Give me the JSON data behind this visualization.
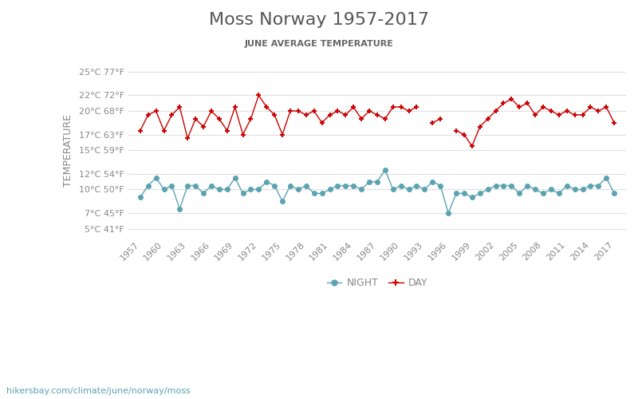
{
  "title": "Moss Norway 1957-2017",
  "subtitle": "JUNE AVERAGE TEMPERATURE",
  "ylabel": "TEMPERATURE",
  "url_text": "hikersbay.com/climate/june/norway/moss",
  "years": [
    1957,
    1958,
    1959,
    1960,
    1961,
    1962,
    1963,
    1964,
    1965,
    1966,
    1967,
    1968,
    1969,
    1970,
    1971,
    1972,
    1973,
    1974,
    1975,
    1976,
    1977,
    1978,
    1979,
    1980,
    1981,
    1982,
    1983,
    1984,
    1985,
    1986,
    1987,
    1988,
    1989,
    1990,
    1991,
    1992,
    1993,
    1994,
    1995,
    1996,
    1997,
    1998,
    1999,
    2000,
    2001,
    2002,
    2003,
    2004,
    2005,
    2006,
    2007,
    2008,
    2009,
    2010,
    2011,
    2012,
    2013,
    2014,
    2015,
    2016,
    2017
  ],
  "day_temps": [
    17.5,
    19.5,
    20.0,
    17.5,
    19.5,
    20.5,
    16.5,
    19.0,
    18.0,
    20.0,
    19.0,
    17.5,
    20.5,
    17.0,
    19.0,
    22.0,
    20.5,
    19.5,
    17.0,
    20.0,
    20.0,
    19.5,
    20.0,
    18.5,
    19.5,
    20.0,
    19.5,
    20.5,
    19.0,
    20.0,
    19.5,
    19.0,
    20.5,
    20.5,
    20.0,
    20.5,
    null,
    18.5,
    19.0,
    null,
    17.5,
    17.0,
    15.5,
    18.0,
    19.0,
    20.0,
    21.0,
    21.5,
    20.5,
    21.0,
    19.5,
    20.5,
    20.0,
    19.5,
    20.0,
    19.5,
    19.5,
    20.5,
    20.0,
    20.5,
    18.5
  ],
  "night_temps": [
    9.0,
    10.5,
    11.5,
    10.0,
    10.5,
    7.5,
    10.5,
    10.5,
    9.5,
    10.5,
    10.0,
    10.0,
    11.5,
    9.5,
    10.0,
    10.0,
    11.0,
    10.5,
    8.5,
    10.5,
    10.0,
    10.5,
    9.5,
    9.5,
    10.0,
    10.5,
    10.5,
    10.5,
    10.0,
    11.0,
    11.0,
    12.5,
    10.0,
    10.5,
    10.0,
    10.5,
    10.0,
    11.0,
    10.5,
    7.0,
    9.5,
    9.5,
    9.0,
    9.5,
    10.0,
    10.5,
    10.5,
    10.5,
    9.5,
    10.5,
    10.0,
    9.5,
    10.0,
    9.5,
    10.5,
    10.0,
    10.0,
    10.5,
    10.5,
    11.5,
    9.5
  ],
  "yticks_c": [
    5,
    7,
    10,
    12,
    15,
    17,
    20,
    22,
    25
  ],
  "yticks_f": [
    41,
    45,
    50,
    54,
    59,
    63,
    68,
    72,
    77
  ],
  "ylim": [
    4,
    26
  ],
  "xticks": [
    1957,
    1960,
    1963,
    1966,
    1969,
    1972,
    1975,
    1978,
    1981,
    1984,
    1987,
    1990,
    1993,
    1996,
    1999,
    2002,
    2005,
    2008,
    2011,
    2014,
    2017
  ],
  "day_color": "#cc0000",
  "night_color": "#5ba3b0",
  "bg_color": "#ffffff",
  "grid_color": "#e0e0e0",
  "title_color": "#555555",
  "subtitle_color": "#666666",
  "label_color": "#888888",
  "tick_color": "#888888",
  "url_color": "#5ba3b0"
}
